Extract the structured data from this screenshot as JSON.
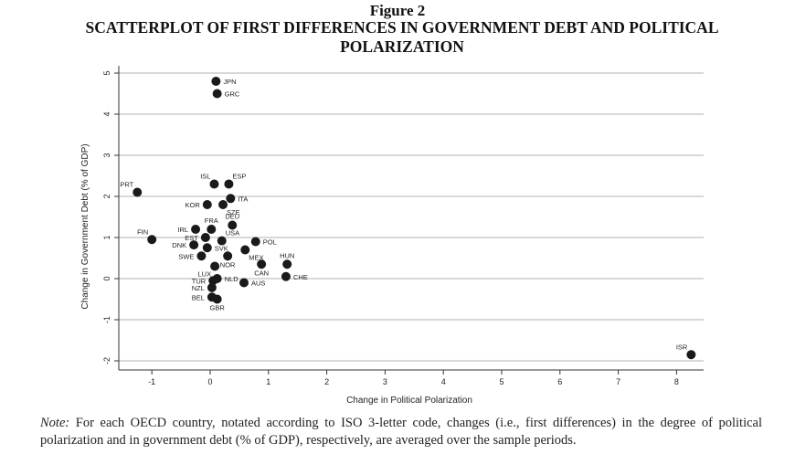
{
  "figure_label": "Figure 2",
  "figure_title": "SCATTERPLOT OF FIRST DIFFERENCES IN GOVERNMENT DEBT AND POLITICAL POLARIZATION",
  "note_label": "Note:",
  "note_text": "For each OECD country, notated according to ISO 3-letter code, changes (i.e., first differences) in the degree of political polarization and in government debt (% of GDP), respectively, are averaged over the sample periods.",
  "colors": {
    "point": "#1a1a1a",
    "grid": "#b0b0b0",
    "axis": "#333333",
    "text": "#222222"
  },
  "chart_data": {
    "type": "scatter",
    "xlabel": "Change in Political Polarization",
    "ylabel": "Change in Government Debt (% of GDP)",
    "xlim": [
      -1.4,
      8.4
    ],
    "ylim": [
      -2.2,
      5.2
    ],
    "xticks": [
      -1,
      0,
      1,
      2,
      3,
      4,
      5,
      6,
      7,
      8
    ],
    "yticks": [
      -2,
      -1,
      0,
      1,
      2,
      3,
      4,
      5
    ],
    "ytick_labels": [
      "-2",
      "-1",
      "0",
      "1",
      "2",
      "3",
      "4",
      "5"
    ],
    "grid": "horizontal",
    "points": [
      {
        "label": "JPN",
        "x": 0.1,
        "y": 4.8,
        "label_pos": "right"
      },
      {
        "label": "GRC",
        "x": 0.12,
        "y": 4.5,
        "label_pos": "right"
      },
      {
        "label": "PRT",
        "x": -1.25,
        "y": 2.1,
        "label_pos": "above-left"
      },
      {
        "label": "ISL",
        "x": 0.07,
        "y": 2.3,
        "label_pos": "above-left"
      },
      {
        "label": "ESP",
        "x": 0.32,
        "y": 2.3,
        "label_pos": "above-right"
      },
      {
        "label": "ITA",
        "x": 0.35,
        "y": 1.95,
        "label_pos": "right"
      },
      {
        "label": "KOR",
        "x": -0.05,
        "y": 1.8,
        "label_pos": "left"
      },
      {
        "label": "SZE",
        "x": 0.22,
        "y": 1.8,
        "label_pos": "below-right"
      },
      {
        "label": "DEU",
        "x": 0.38,
        "y": 1.3,
        "label_pos": "above"
      },
      {
        "label": "FRA",
        "x": 0.02,
        "y": 1.2,
        "label_pos": "above"
      },
      {
        "label": "IRL",
        "x": -0.25,
        "y": 1.2,
        "label_pos": "left"
      },
      {
        "label": "FIN",
        "x": -1.0,
        "y": 0.95,
        "label_pos": "above-left"
      },
      {
        "label": "EST",
        "x": -0.08,
        "y": 1.0,
        "label_pos": "left"
      },
      {
        "label": "USA",
        "x": 0.2,
        "y": 0.92,
        "label_pos": "above-right"
      },
      {
        "label": "DNK",
        "x": -0.28,
        "y": 0.82,
        "label_pos": "left"
      },
      {
        "label": "SVK",
        "x": -0.05,
        "y": 0.75,
        "label_pos": "right"
      },
      {
        "label": "POL",
        "x": 0.78,
        "y": 0.9,
        "label_pos": "right"
      },
      {
        "label": "MEX",
        "x": 0.6,
        "y": 0.7,
        "label_pos": "below-right"
      },
      {
        "label": "SWE",
        "x": -0.15,
        "y": 0.55,
        "label_pos": "left"
      },
      {
        "label": "NOR",
        "x": 0.3,
        "y": 0.55,
        "label_pos": "below"
      },
      {
        "label": "HUN",
        "x": 1.32,
        "y": 0.35,
        "label_pos": "above"
      },
      {
        "label": "CAN",
        "x": 0.88,
        "y": 0.35,
        "label_pos": "below"
      },
      {
        "label": "LUX",
        "x": 0.08,
        "y": 0.3,
        "label_pos": "below-left"
      },
      {
        "label": "CHE",
        "x": 1.3,
        "y": 0.05,
        "label_pos": "right"
      },
      {
        "label": "TUR",
        "x": 0.05,
        "y": -0.05,
        "label_pos": "left"
      },
      {
        "label": "NLD",
        "x": 0.12,
        "y": 0.0,
        "label_pos": "right"
      },
      {
        "label": "AUS",
        "x": 0.58,
        "y": -0.1,
        "label_pos": "right"
      },
      {
        "label": "NZL",
        "x": 0.03,
        "y": -0.22,
        "label_pos": "left"
      },
      {
        "label": "BEL",
        "x": 0.03,
        "y": -0.45,
        "label_pos": "left"
      },
      {
        "label": "GBR",
        "x": 0.12,
        "y": -0.5,
        "label_pos": "below"
      },
      {
        "label": "ISR",
        "x": 8.25,
        "y": -1.85,
        "label_pos": "above-left"
      }
    ]
  }
}
